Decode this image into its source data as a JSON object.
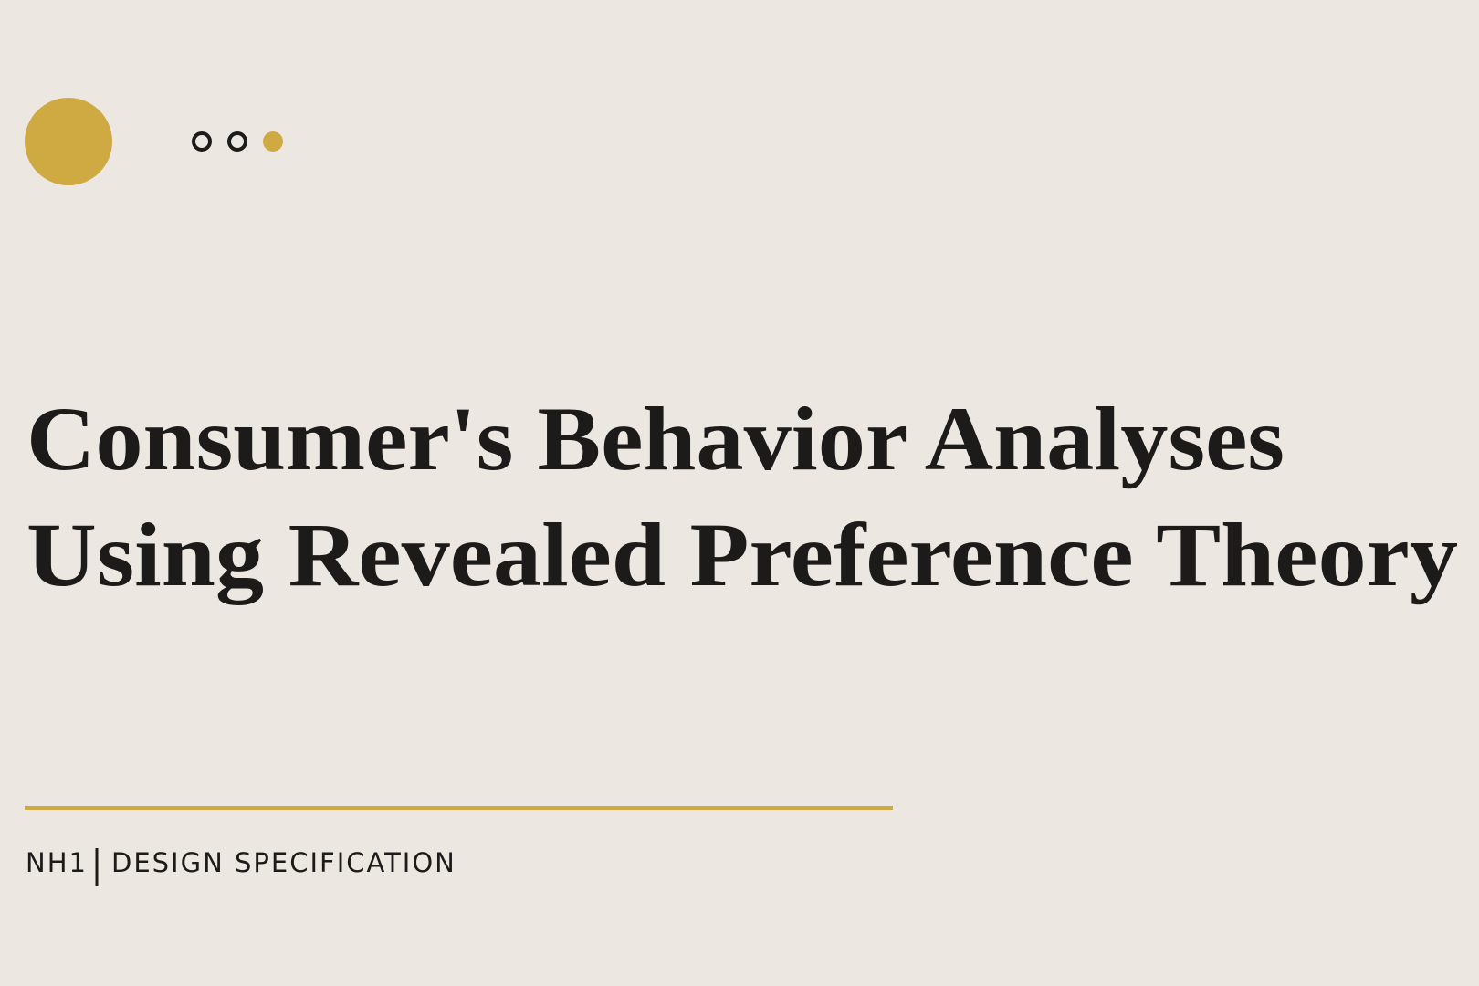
{
  "title": {
    "lines": [
      "Consumer's Behavior Analyses",
      "Using Revealed Preference Theory"
    ]
  },
  "footer": {
    "code": "NH1",
    "label": "DESIGN SPECIFICATION"
  }
}
